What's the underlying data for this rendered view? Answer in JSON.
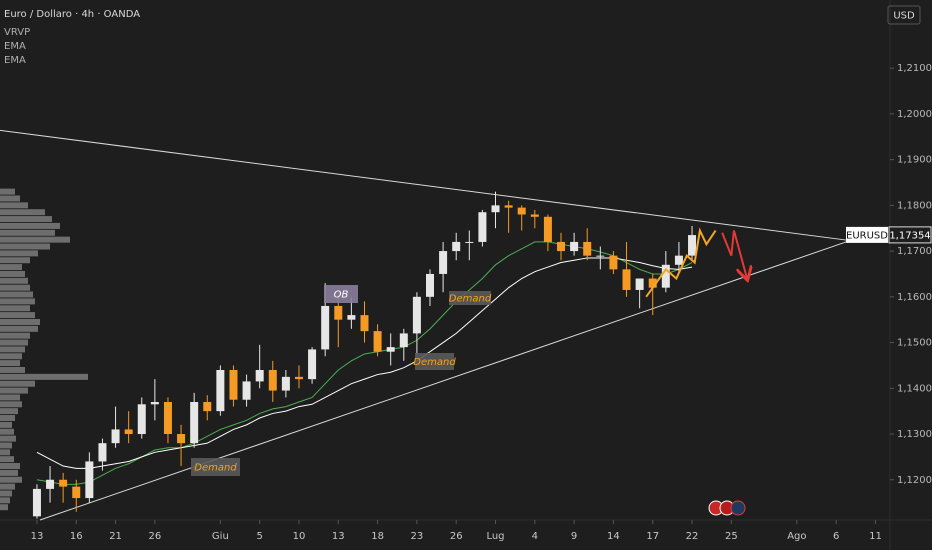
{
  "chart_data": {
    "type": "candlestick",
    "title": "Euro / Dollaro · 4h · OANDA",
    "indicator_labels": [
      "VRVP",
      "EMA",
      "EMA"
    ],
    "currency": "USD",
    "symbol": "EURUSD",
    "last_price": {
      "value": 1.17354,
      "label": "1,17354"
    },
    "up_color": "#e6e6e6",
    "down_color": "#f59a23",
    "background": "#1e1e1e",
    "grid": false,
    "x": [
      0,
      1,
      2,
      3,
      4,
      5,
      6,
      7,
      8,
      9,
      10,
      11,
      12,
      13,
      14,
      15,
      16,
      17,
      18,
      19,
      20,
      21,
      22,
      23,
      24,
      25,
      26,
      27,
      28,
      29,
      30,
      31,
      32,
      33,
      34,
      35,
      36,
      37,
      38,
      39,
      40,
      41,
      42,
      43,
      44,
      45,
      46,
      47,
      48,
      49,
      50
    ],
    "open": [
      1.112,
      1.118,
      1.12,
      1.1185,
      1.116,
      1.124,
      1.128,
      1.131,
      1.13,
      1.1365,
      1.137,
      1.13,
      1.128,
      1.137,
      1.135,
      1.144,
      1.1375,
      1.1415,
      1.144,
      1.1395,
      1.1425,
      1.142,
      1.1485,
      1.158,
      1.155,
      1.156,
      1.1525,
      1.148,
      1.149,
      1.152,
      1.16,
      1.165,
      1.17,
      1.172,
      1.172,
      1.1785,
      1.18,
      1.1795,
      1.178,
      1.1775,
      1.172,
      1.17,
      1.172,
      1.169,
      1.169,
      1.166,
      1.1615,
      1.164,
      1.162,
      1.167,
      1.169
    ],
    "high": [
      1.119,
      1.123,
      1.1215,
      1.12,
      1.126,
      1.129,
      1.136,
      1.135,
      1.138,
      1.142,
      1.138,
      1.132,
      1.139,
      1.1385,
      1.145,
      1.145,
      1.143,
      1.1495,
      1.146,
      1.144,
      1.145,
      1.149,
      1.163,
      1.161,
      1.16,
      1.159,
      1.154,
      1.152,
      1.153,
      1.161,
      1.166,
      1.172,
      1.174,
      1.1745,
      1.179,
      1.183,
      1.181,
      1.18,
      1.179,
      1.178,
      1.174,
      1.174,
      1.175,
      1.171,
      1.17,
      1.172,
      1.164,
      1.165,
      1.17,
      1.172,
      1.1755
    ],
    "low": [
      1.1115,
      1.115,
      1.115,
      1.113,
      1.115,
      1.122,
      1.127,
      1.128,
      1.129,
      1.133,
      1.128,
      1.123,
      1.127,
      1.133,
      1.134,
      1.136,
      1.136,
      1.14,
      1.137,
      1.138,
      1.14,
      1.141,
      1.147,
      1.149,
      1.153,
      1.15,
      1.147,
      1.145,
      1.146,
      1.147,
      1.158,
      1.161,
      1.168,
      1.168,
      1.171,
      1.175,
      1.174,
      1.1745,
      1.175,
      1.17,
      1.168,
      1.169,
      1.168,
      1.166,
      1.165,
      1.16,
      1.1575,
      1.156,
      1.161,
      1.165,
      1.168
    ],
    "close": [
      1.118,
      1.12,
      1.1185,
      1.116,
      1.124,
      1.128,
      1.131,
      1.13,
      1.1365,
      1.137,
      1.13,
      1.128,
      1.137,
      1.135,
      1.144,
      1.1375,
      1.1415,
      1.144,
      1.1395,
      1.1425,
      1.142,
      1.1485,
      1.158,
      1.155,
      1.156,
      1.1525,
      1.148,
      1.149,
      1.152,
      1.16,
      1.165,
      1.17,
      1.172,
      1.172,
      1.1785,
      1.18,
      1.1795,
      1.178,
      1.1775,
      1.172,
      1.17,
      1.172,
      1.169,
      1.169,
      1.166,
      1.1615,
      1.164,
      1.162,
      1.167,
      1.169,
      1.1735
    ],
    "indicators": [
      {
        "color": "#4caf50",
        "values": [
          1.12,
          1.1195,
          1.119,
          1.119,
          1.1195,
          1.121,
          1.1225,
          1.1235,
          1.125,
          1.1265,
          1.127,
          1.127,
          1.128,
          1.1295,
          1.131,
          1.132,
          1.133,
          1.1345,
          1.1355,
          1.136,
          1.137,
          1.138,
          1.141,
          1.144,
          1.146,
          1.1475,
          1.148,
          1.1485,
          1.149,
          1.1505,
          1.153,
          1.156,
          1.159,
          1.1615,
          1.164,
          1.167,
          1.169,
          1.1705,
          1.172,
          1.172,
          1.1715,
          1.171,
          1.1705,
          1.1698,
          1.169,
          1.1675,
          1.166,
          1.165,
          1.165,
          1.166,
          1.1675
        ]
      },
      {
        "color": "#ffffff",
        "values": [
          1.126,
          1.1245,
          1.123,
          1.1225,
          1.1225,
          1.123,
          1.1235,
          1.124,
          1.125,
          1.126,
          1.1265,
          1.127,
          1.1275,
          1.128,
          1.1295,
          1.131,
          1.132,
          1.1335,
          1.1345,
          1.135,
          1.136,
          1.1365,
          1.138,
          1.1395,
          1.141,
          1.142,
          1.143,
          1.1435,
          1.1445,
          1.146,
          1.148,
          1.15,
          1.152,
          1.1545,
          1.157,
          1.1595,
          1.162,
          1.164,
          1.1655,
          1.1665,
          1.1675,
          1.168,
          1.1685,
          1.1685,
          1.1685,
          1.168,
          1.1675,
          1.1668,
          1.1662,
          1.166,
          1.1665
        ]
      }
    ],
    "volume_profile": {
      "color": "#8a8a8a",
      "prices": [
        1.183,
        1.1815,
        1.18,
        1.1785,
        1.177,
        1.1755,
        1.174,
        1.1725,
        1.171,
        1.1695,
        1.168,
        1.1665,
        1.165,
        1.1635,
        1.162,
        1.1605,
        1.159,
        1.1575,
        1.156,
        1.1545,
        1.153,
        1.1515,
        1.15,
        1.1485,
        1.147,
        1.1455,
        1.144,
        1.1425,
        1.141,
        1.1395,
        1.138,
        1.1365,
        1.135,
        1.1335,
        1.132,
        1.1305,
        1.129,
        1.1275,
        1.126,
        1.1245,
        1.123,
        1.1215,
        1.12,
        1.1185,
        1.117,
        1.1155,
        1.114
      ],
      "values": [
        15,
        20,
        28,
        45,
        52,
        60,
        55,
        70,
        50,
        38,
        30,
        22,
        25,
        28,
        30,
        33,
        35,
        30,
        35,
        40,
        38,
        30,
        28,
        25,
        22,
        20,
        25,
        88,
        35,
        28,
        20,
        22,
        18,
        15,
        12,
        14,
        16,
        12,
        10,
        14,
        20,
        18,
        22,
        15,
        12,
        10,
        8
      ]
    },
    "trendlines": [
      {
        "color": "#d9d9d9",
        "x": [
          -2.82,
          62.06
        ],
        "y": [
          1.1964,
          1.1723
        ]
      },
      {
        "color": "#d9d9d9",
        "x": [
          0.23,
          62.06
        ],
        "y": [
          1.1112,
          1.1723
        ]
      }
    ],
    "projections": [
      {
        "color": "#f5a623",
        "x": [
          46.5,
          48,
          48.8,
          49.6,
          50.2,
          50.6,
          51.1,
          51.8
        ],
        "y": [
          1.16,
          1.166,
          1.164,
          1.169,
          1.1675,
          1.1745,
          1.1715,
          1.1745
        ]
      },
      {
        "color": "#e53935",
        "x": [
          52.3,
          53.0,
          53.2,
          54.2
        ],
        "y": [
          1.174,
          1.169,
          1.1745,
          1.164
        ]
      }
    ],
    "annotations": [
      {
        "text": "OB",
        "color": "#ffffff",
        "box": "#8a7d9c"
      },
      {
        "text": "Demand",
        "color": "#f7a21b",
        "box": "#5a5a5a"
      },
      {
        "text": "Demand",
        "color": "#f7a21b",
        "box": "#5a5a5a"
      },
      {
        "text": "Demand",
        "color": "#f7a21b",
        "box": "#5a5a5a"
      }
    ],
    "xlim": [
      -2.82,
      65.11
    ],
    "ylim": [
      1.1112,
      1.2249
    ],
    "xticks": [
      {
        "value": 0,
        "label": "13"
      },
      {
        "value": 3,
        "label": "16"
      },
      {
        "value": 6,
        "label": "21"
      },
      {
        "value": 9,
        "label": "26"
      },
      {
        "value": 14,
        "label": "Giu"
      },
      {
        "value": 17,
        "label": "5"
      },
      {
        "value": 20,
        "label": "10"
      },
      {
        "value": 23,
        "label": "13"
      },
      {
        "value": 26,
        "label": "18"
      },
      {
        "value": 29,
        "label": "23"
      },
      {
        "value": 32,
        "label": "26"
      },
      {
        "value": 35,
        "label": "Lug"
      },
      {
        "value": 38,
        "label": "4"
      },
      {
        "value": 41,
        "label": "9"
      },
      {
        "value": 44,
        "label": "14"
      },
      {
        "value": 47,
        "label": "17"
      },
      {
        "value": 50,
        "label": "22"
      },
      {
        "value": 53,
        "label": "25"
      },
      {
        "value": 58,
        "label": "Ago"
      },
      {
        "value": 61,
        "label": "6"
      },
      {
        "value": 64,
        "label": "11"
      }
    ],
    "yticks": [
      {
        "value": 1.12,
        "label": "1,12000"
      },
      {
        "value": 1.13,
        "label": "1,13000"
      },
      {
        "value": 1.14,
        "label": "1,14000"
      },
      {
        "value": 1.15,
        "label": "1,15000"
      },
      {
        "value": 1.16,
        "label": "1,16000"
      },
      {
        "value": 1.17,
        "label": "1,17000"
      },
      {
        "value": 1.18,
        "label": "1,18000"
      },
      {
        "value": 1.19,
        "label": "1,19000"
      },
      {
        "value": 1.2,
        "label": "1,20000"
      },
      {
        "value": 1.21,
        "label": "1,21000"
      }
    ]
  }
}
